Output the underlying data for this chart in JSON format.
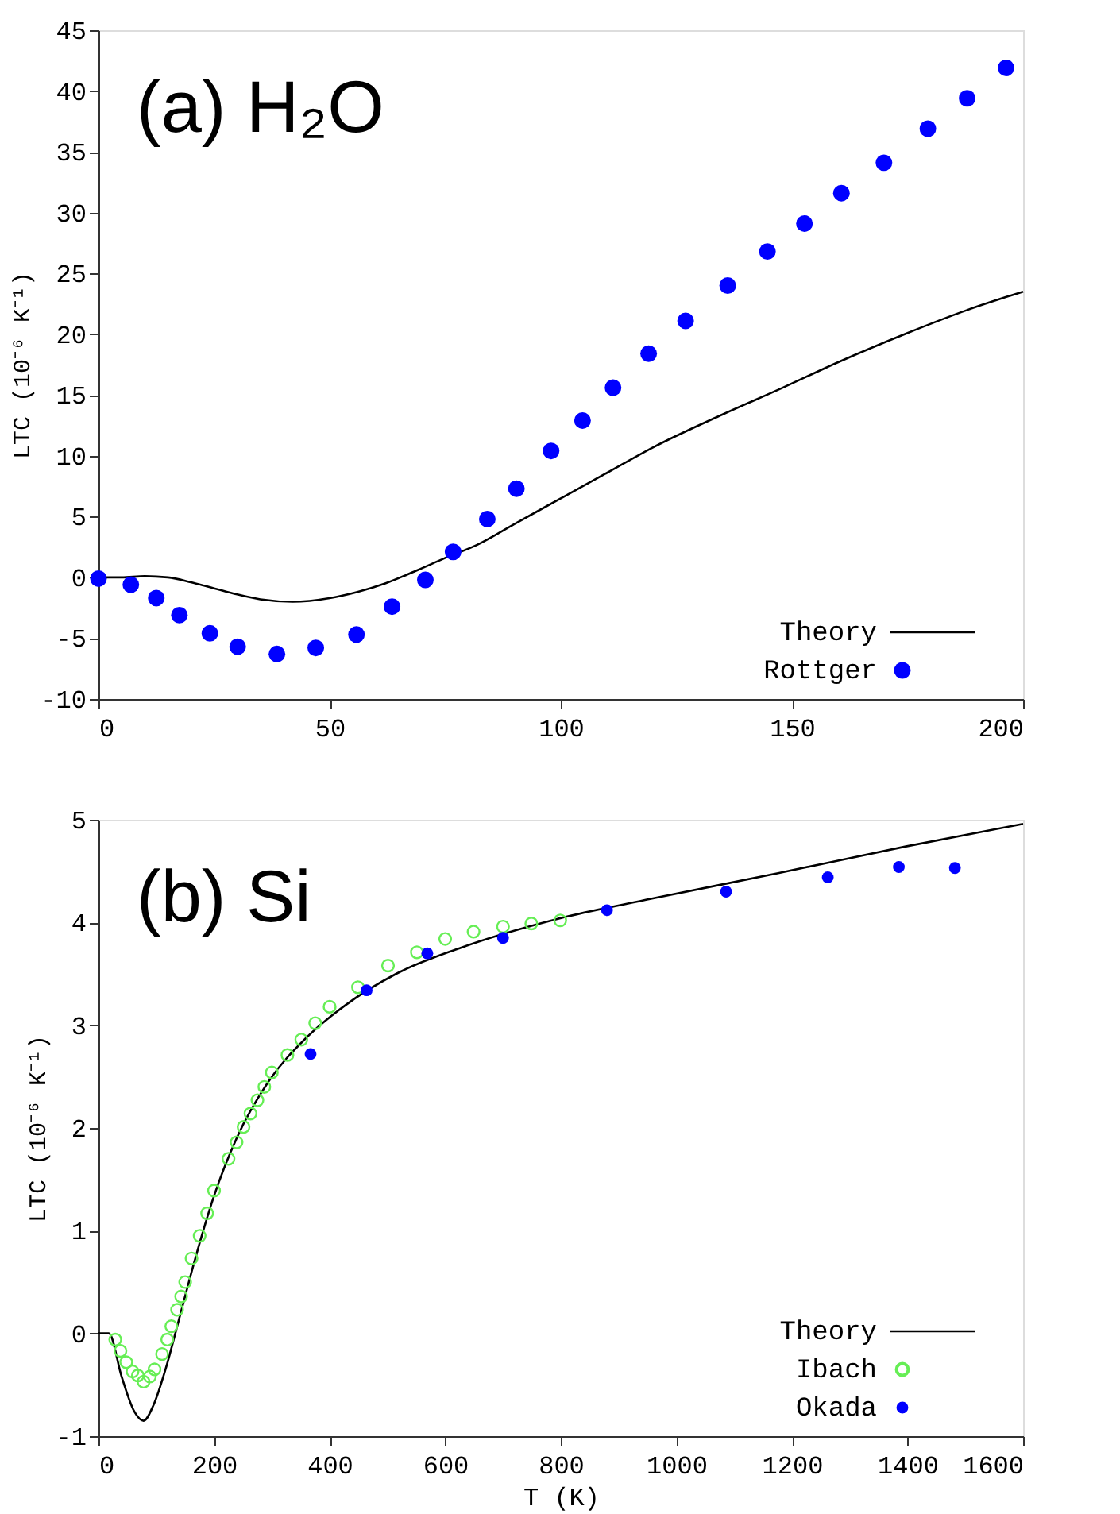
{
  "chart_data": [
    {
      "type": "scatter",
      "annotations": [
        "(a) H₂O"
      ],
      "ylabel": "LTC (10⁻⁶ K⁻¹)",
      "xlim": [
        0,
        200
      ],
      "xticks": [
        0,
        50,
        100,
        150,
        200
      ],
      "ylim": [
        -10,
        45
      ],
      "yticks": [
        -10,
        -5,
        0,
        5,
        10,
        15,
        20,
        25,
        30,
        35,
        40,
        45
      ],
      "legend": "bottom right",
      "grid": false,
      "series": [
        {
          "name": "Theory",
          "type": "line",
          "color": "#000000",
          "marker": "none",
          "x": [
            0,
            5,
            10,
            15,
            20,
            25,
            30,
            35,
            42,
            50,
            56,
            62,
            69,
            75,
            82,
            90,
            100,
            110,
            120,
            135,
            148,
            160,
            175,
            188,
            200
          ],
          "values": [
            0,
            0,
            0.1,
            0,
            -0.4,
            -0.9,
            -1.4,
            -1.8,
            -2.0,
            -1.7,
            -1.2,
            -0.5,
            0.6,
            1.6,
            2.7,
            4.4,
            6.5,
            8.6,
            10.7,
            13.4,
            15.6,
            17.7,
            20.1,
            22.0,
            23.5
          ]
        },
        {
          "name": "Rottger",
          "color": "#0000ff",
          "marker": "circle",
          "x": [
            0,
            7.0,
            12.5,
            17.5,
            24.1,
            30.1,
            38.6,
            47.0,
            55.8,
            63.5,
            70.7,
            76.7,
            84.1,
            90.4,
            97.9,
            104.7,
            111.3,
            119.0,
            127.0,
            136.1,
            144.7,
            152.7,
            160.7,
            169.9,
            179.4,
            187.9,
            196.3
          ],
          "values": [
            -0.1,
            -0.6,
            -1.7,
            -3.1,
            -4.6,
            -5.7,
            -6.3,
            -5.8,
            -4.7,
            -2.4,
            -0.2,
            2.1,
            4.8,
            7.3,
            10.4,
            12.9,
            15.6,
            18.4,
            21.1,
            24.0,
            26.8,
            29.1,
            31.6,
            34.1,
            36.9,
            39.4,
            41.9
          ]
        }
      ]
    },
    {
      "type": "scatter",
      "annotations": [
        "(b) Si"
      ],
      "xlabel": "T (K)",
      "ylabel": "LTC (10⁻⁶ K⁻¹)",
      "xlim": [
        0,
        1600
      ],
      "xticks": [
        0,
        200,
        400,
        600,
        800,
        1000,
        1200,
        1400,
        1600
      ],
      "ylim": [
        -1,
        5
      ],
      "yticks": [
        -1,
        0,
        1,
        2,
        3,
        4,
        5
      ],
      "legend": "bottom right",
      "grid": false,
      "series": [
        {
          "name": "Theory",
          "type": "line",
          "color": "#000000",
          "marker": "none",
          "x": [
            0,
            18,
            40,
            62,
            78,
            95,
            117,
            139,
            167,
            200,
            239,
            294,
            360,
            426,
            515,
            625,
            791,
            956,
            1176,
            1397,
            1600
          ],
          "values": [
            0.0,
            0.0,
            -0.42,
            -0.76,
            -0.85,
            -0.7,
            -0.33,
            0.13,
            0.72,
            1.34,
            1.9,
            2.45,
            2.88,
            3.19,
            3.5,
            3.75,
            4.03,
            4.23,
            4.48,
            4.74,
            4.96
          ]
        },
        {
          "name": "Ibach",
          "color": "#66ee55",
          "marker": "circle-open",
          "x": [
            29,
            38,
            48,
            59,
            68,
            78,
            89,
            97,
            110,
            119,
            126,
            136,
            143,
            150,
            161,
            175,
            188,
            200,
            225,
            239,
            251,
            263,
            275,
            287,
            300,
            327,
            351,
            375,
            400,
            449,
            501,
            551,
            600,
            649,
            700,
            749,
            799
          ],
          "values": [
            -0.06,
            -0.17,
            -0.28,
            -0.37,
            -0.41,
            -0.47,
            -0.42,
            -0.35,
            -0.2,
            -0.06,
            0.07,
            0.23,
            0.36,
            0.5,
            0.73,
            0.95,
            1.17,
            1.39,
            1.7,
            1.86,
            2.01,
            2.14,
            2.27,
            2.4,
            2.54,
            2.71,
            2.86,
            3.02,
            3.18,
            3.37,
            3.58,
            3.71,
            3.84,
            3.91,
            3.96,
            3.99,
            4.02
          ]
        },
        {
          "name": "Okada",
          "color": "#0000ff",
          "marker": "circle",
          "x": [
            367,
            464,
            569,
            700,
            880,
            1086,
            1262,
            1385,
            1482
          ],
          "values": [
            2.72,
            3.34,
            3.7,
            3.85,
            4.12,
            4.3,
            4.44,
            4.54,
            4.53
          ]
        }
      ]
    }
  ]
}
